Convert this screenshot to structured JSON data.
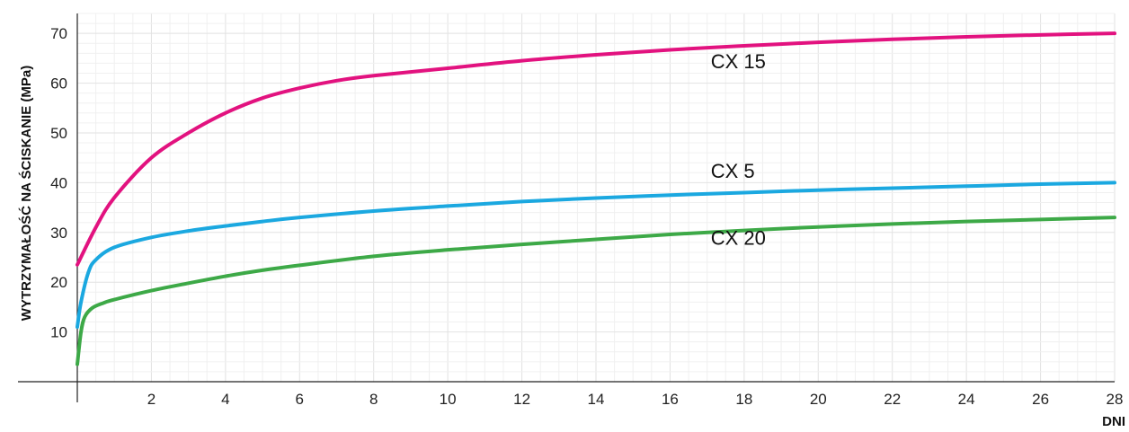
{
  "chart_data": {
    "type": "line",
    "xlabel": "DNI",
    "ylabel": "WYTRZYMAŁOŚĆ NA ŚCISKANIE (MPa)",
    "xlim": [
      0,
      28
    ],
    "ylim": [
      0,
      74
    ],
    "x_ticks": [
      "2",
      "4",
      "6",
      "8",
      "10",
      "12",
      "14",
      "16",
      "18",
      "20",
      "22",
      "24",
      "26",
      "28"
    ],
    "y_ticks": [
      "10",
      "20",
      "30",
      "40",
      "50",
      "60",
      "70"
    ],
    "grid": true,
    "series": [
      {
        "name": "CX 15",
        "color": "#e2127f",
        "label_at": {
          "x": 17.1,
          "y": 63
        },
        "x": [
          0,
          0.5,
          1,
          2,
          3,
          4,
          5,
          6,
          7,
          8,
          10,
          12,
          14,
          16,
          18,
          20,
          22,
          24,
          26,
          28
        ],
        "y": [
          23.5,
          31,
          37,
          45,
          50,
          54,
          57,
          59,
          60.5,
          61.5,
          63,
          64.5,
          65.7,
          66.7,
          67.5,
          68.2,
          68.8,
          69.3,
          69.7,
          70
        ]
      },
      {
        "name": "CX 5",
        "color": "#1ba8e0",
        "label_at": {
          "x": 17.1,
          "y": 41
        },
        "x": [
          0,
          0.1,
          0.3,
          0.5,
          1,
          2,
          3,
          4,
          5,
          6,
          8,
          10,
          12,
          14,
          16,
          18,
          20,
          22,
          24,
          26,
          28
        ],
        "y": [
          11,
          16,
          22,
          24.5,
          27,
          29,
          30.3,
          31.3,
          32.2,
          33,
          34.3,
          35.3,
          36.2,
          36.9,
          37.5,
          38,
          38.5,
          38.9,
          39.3,
          39.7,
          40
        ]
      },
      {
        "name": "CX 20",
        "color": "#3da947",
        "label_at": {
          "x": 17.1,
          "y": 27.5
        },
        "x": [
          0,
          0.1,
          0.2,
          0.4,
          0.7,
          1,
          2,
          3,
          4,
          5,
          6,
          8,
          10,
          12,
          14,
          16,
          18,
          20,
          22,
          24,
          26,
          28
        ],
        "y": [
          3.5,
          10,
          13,
          14.8,
          15.8,
          16.5,
          18.3,
          19.8,
          21.2,
          22.4,
          23.4,
          25.2,
          26.5,
          27.6,
          28.6,
          29.6,
          30.4,
          31.1,
          31.7,
          32.2,
          32.6,
          33
        ]
      }
    ]
  }
}
